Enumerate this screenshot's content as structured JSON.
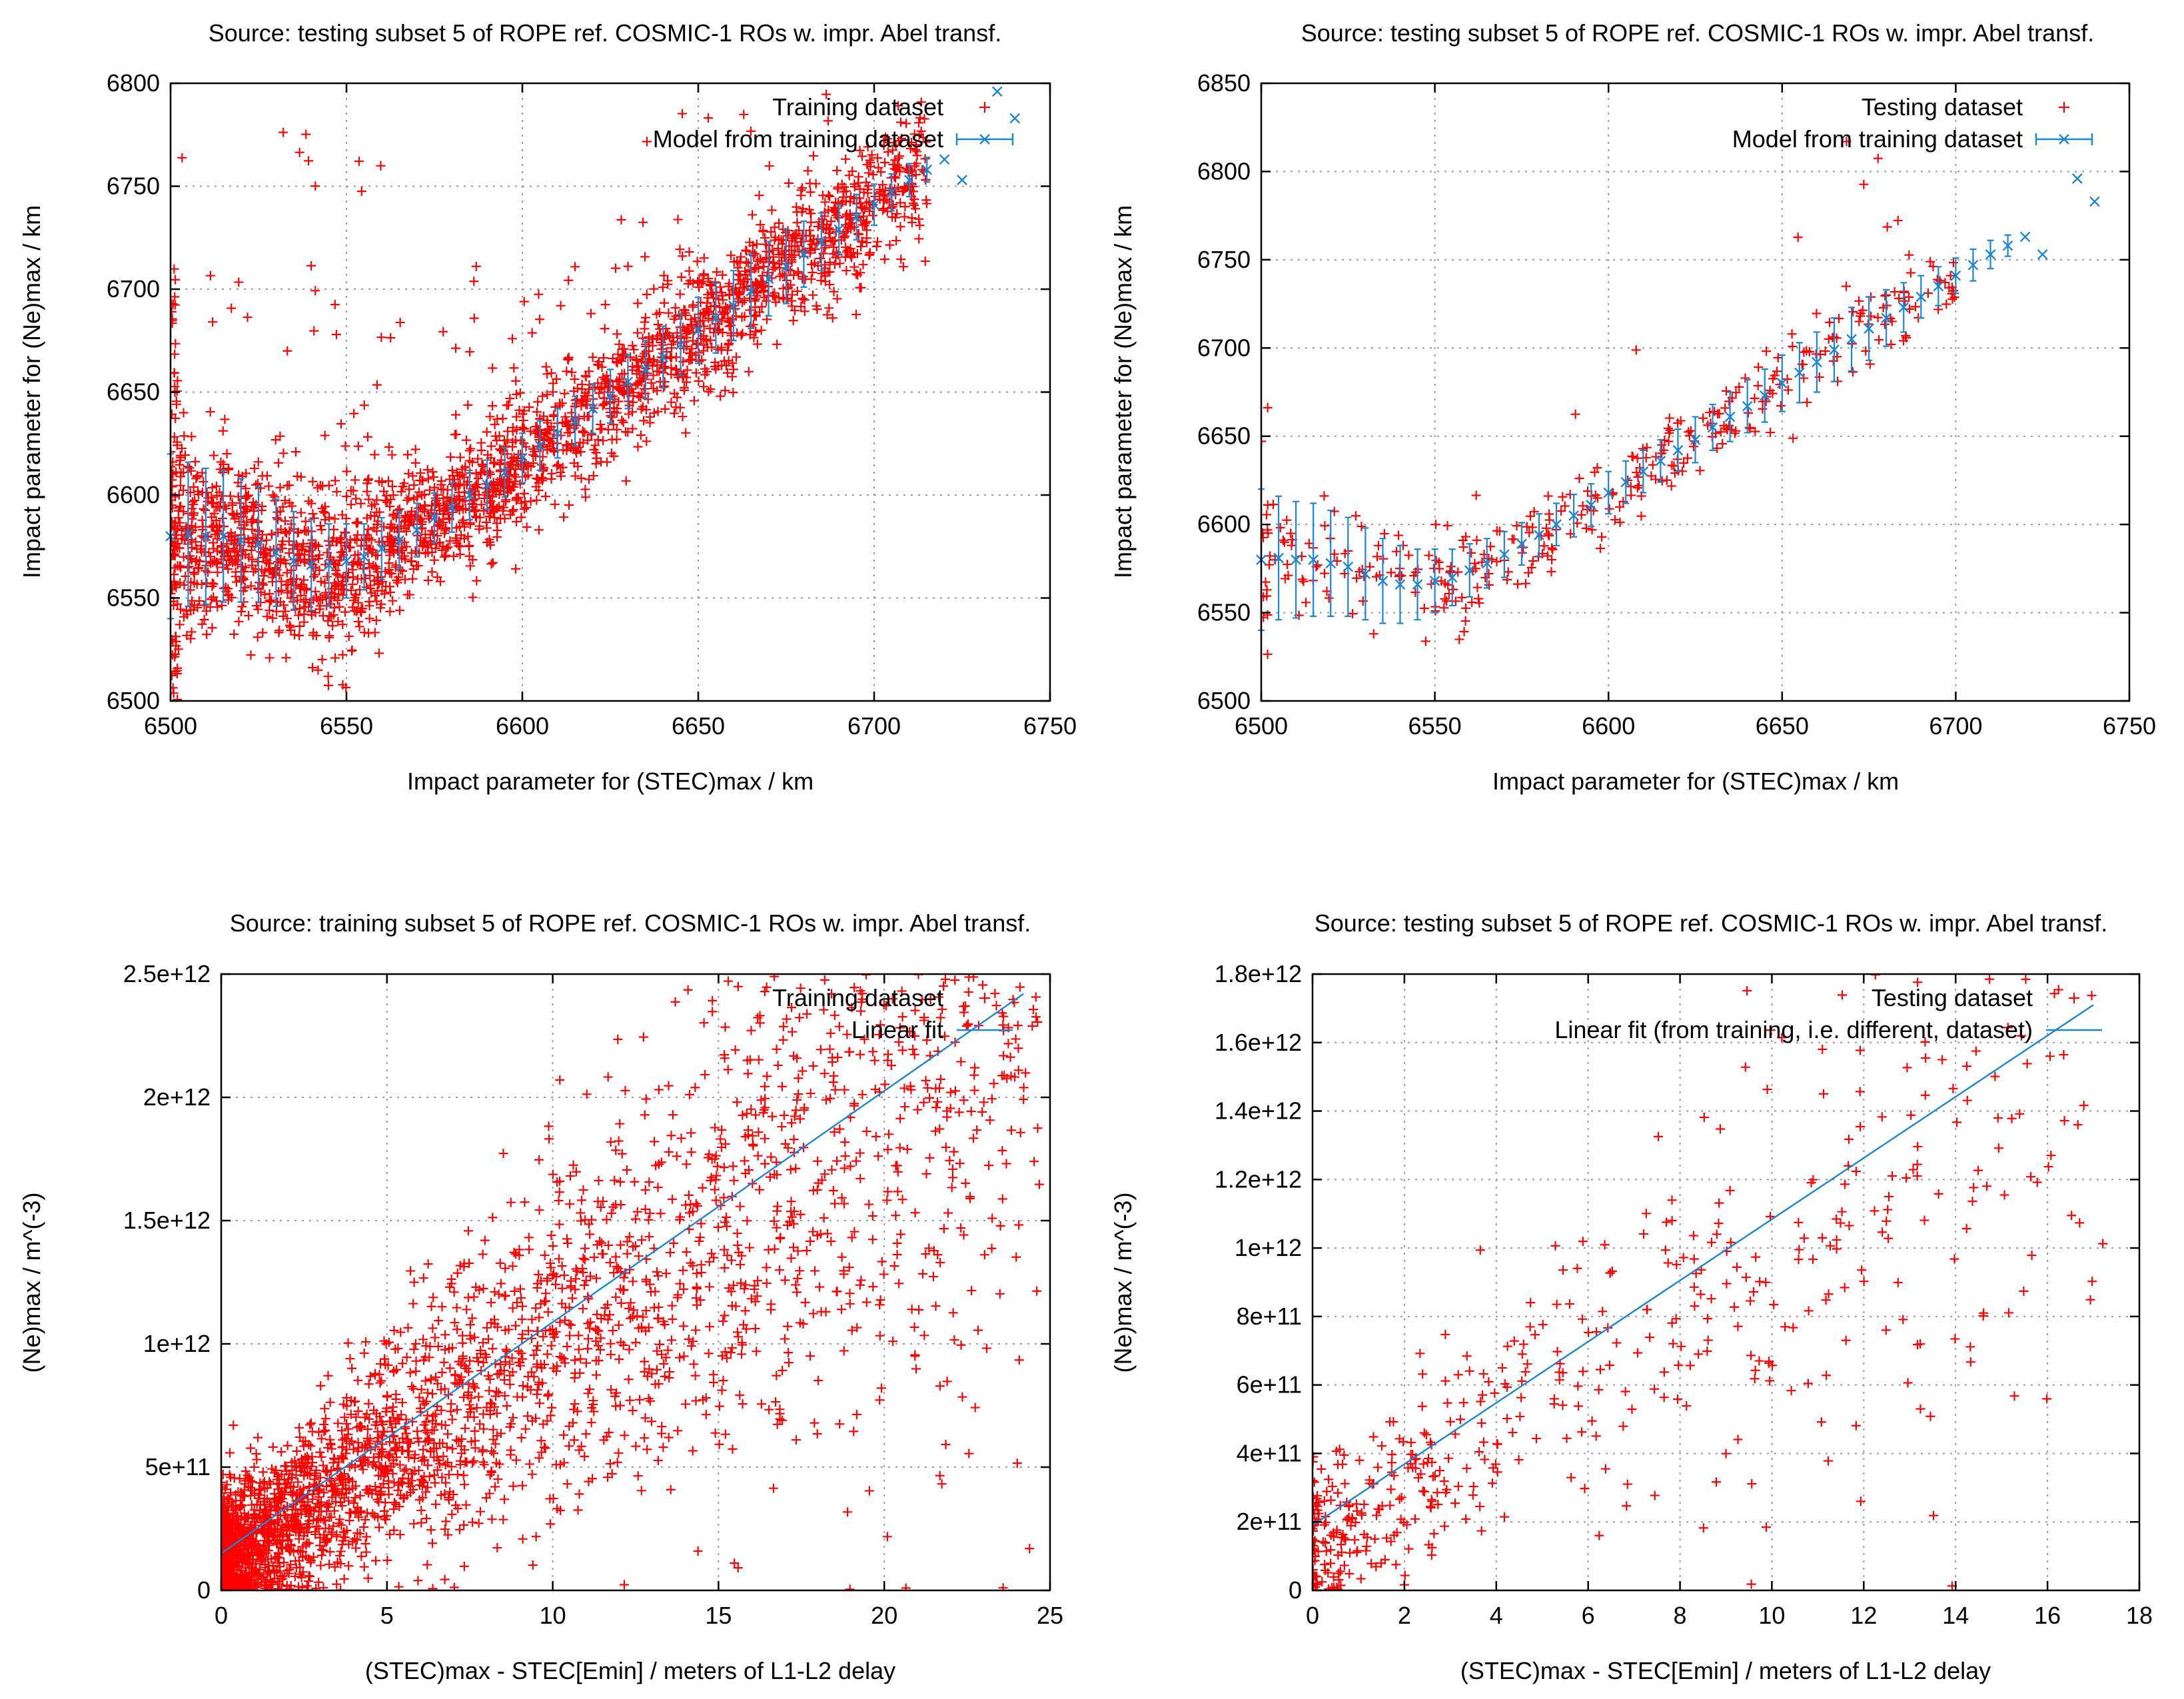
{
  "colors": {
    "points": "#ff0000",
    "model": "#1a85d4",
    "frame": "#000000",
    "grid": "#9a9a9a"
  },
  "chart_data": [
    {
      "type": "scatter",
      "title": "Source: testing subset 5 of ROPE ref. COSMIC-1 ROs w. impr. Abel transf.",
      "xlabel": "Impact parameter for (STEC)max / km",
      "ylabel": "Impact parameter for (Ne)max / km",
      "xlim": [
        6500,
        6750
      ],
      "ylim": [
        6500,
        6800
      ],
      "xticks": [
        6500,
        6550,
        6600,
        6650,
        6700,
        6750
      ],
      "xtick_labels": [
        "6500",
        "6550",
        "6600",
        "6650",
        "6700",
        "6750"
      ],
      "yticks": [
        6500,
        6550,
        6600,
        6650,
        6700,
        6750,
        6800
      ],
      "ytick_labels": [
        "6500",
        "6550",
        "6600",
        "6650",
        "6700",
        "6750",
        "6800"
      ],
      "legend_position": "top-right",
      "series": [
        {
          "name": "Training dataset",
          "kind": "points",
          "count": 2600,
          "trend": "model",
          "spread": 16,
          "noise_mode": "crowd"
        },
        {
          "name": "Model from training dataset",
          "kind": "errorbars",
          "x": [
            6500,
            6505,
            6510,
            6515,
            6520,
            6525,
            6530,
            6535,
            6540,
            6545,
            6550,
            6555,
            6560,
            6565,
            6570,
            6575,
            6580,
            6585,
            6590,
            6595,
            6600,
            6605,
            6610,
            6615,
            6620,
            6625,
            6630,
            6635,
            6640,
            6645,
            6650,
            6655,
            6660,
            6665,
            6670,
            6675,
            6680,
            6685,
            6690,
            6695,
            6700,
            6705,
            6710,
            6715,
            6720,
            6725,
            6735,
            6740
          ],
          "y": [
            6580,
            6581,
            6580,
            6580,
            6578,
            6576,
            6572,
            6568,
            6566,
            6566,
            6568,
            6570,
            6574,
            6578,
            6583,
            6589,
            6594,
            6600,
            6605,
            6611,
            6618,
            6624,
            6630,
            6636,
            6642,
            6648,
            6655,
            6661,
            6667,
            6673,
            6680,
            6686,
            6692,
            6699,
            6705,
            6711,
            6717,
            6723,
            6729,
            6735,
            6741,
            6747,
            6753,
            6758,
            6763,
            6753,
            6796,
            6783
          ],
          "err": [
            40,
            35,
            33,
            32,
            30,
            28,
            26,
            24,
            22,
            20,
            18,
            16,
            15,
            14,
            13,
            12,
            12,
            12,
            12,
            12,
            12,
            12,
            12,
            12,
            12,
            13,
            13,
            14,
            15,
            15,
            16,
            17,
            17,
            18,
            18,
            18,
            16,
            14,
            12,
            11,
            10,
            9,
            8,
            6,
            0,
            0,
            0,
            0
          ]
        }
      ]
    },
    {
      "type": "scatter",
      "title": "Source: testing subset 5 of ROPE ref. COSMIC-1 ROs w. impr. Abel transf.",
      "xlabel": "Impact parameter for (STEC)max / km",
      "ylabel": "Impact parameter for (Ne)max / km",
      "xlim": [
        6500,
        6750
      ],
      "ylim": [
        6500,
        6850
      ],
      "xticks": [
        6500,
        6550,
        6600,
        6650,
        6700,
        6750
      ],
      "xtick_labels": [
        "6500",
        "6550",
        "6600",
        "6650",
        "6700",
        "6750"
      ],
      "yticks": [
        6500,
        6550,
        6600,
        6650,
        6700,
        6750,
        6800,
        6850
      ],
      "ytick_labels": [
        "6500",
        "6550",
        "6600",
        "6650",
        "6700",
        "6750",
        "6800",
        "6850"
      ],
      "legend_position": "top-right",
      "series": [
        {
          "name": "Testing dataset",
          "kind": "points",
          "count": 380,
          "trend": "model",
          "spread": 12,
          "noise_mode": "sparse"
        },
        {
          "name": "Model from training dataset",
          "kind": "errorbars",
          "x": [
            6500,
            6505,
            6510,
            6515,
            6520,
            6525,
            6530,
            6535,
            6540,
            6545,
            6550,
            6555,
            6560,
            6565,
            6570,
            6575,
            6580,
            6585,
            6590,
            6595,
            6600,
            6605,
            6610,
            6615,
            6620,
            6625,
            6630,
            6635,
            6640,
            6645,
            6650,
            6655,
            6660,
            6665,
            6670,
            6675,
            6680,
            6685,
            6690,
            6695,
            6700,
            6705,
            6710,
            6715,
            6720,
            6725,
            6735,
            6740
          ],
          "y": [
            6580,
            6581,
            6580,
            6580,
            6578,
            6576,
            6572,
            6568,
            6566,
            6566,
            6568,
            6570,
            6574,
            6578,
            6583,
            6589,
            6594,
            6600,
            6605,
            6611,
            6618,
            6624,
            6630,
            6636,
            6642,
            6648,
            6655,
            6661,
            6667,
            6673,
            6680,
            6686,
            6692,
            6699,
            6705,
            6711,
            6717,
            6723,
            6729,
            6735,
            6741,
            6747,
            6753,
            6758,
            6763,
            6753,
            6796,
            6783
          ],
          "err": [
            40,
            35,
            33,
            32,
            30,
            28,
            26,
            24,
            22,
            20,
            18,
            16,
            15,
            14,
            13,
            12,
            12,
            12,
            12,
            12,
            12,
            12,
            12,
            12,
            12,
            13,
            13,
            14,
            15,
            15,
            16,
            17,
            17,
            18,
            18,
            18,
            16,
            14,
            12,
            11,
            10,
            9,
            8,
            6,
            0,
            0,
            0,
            0
          ]
        }
      ]
    },
    {
      "type": "scatter",
      "title": "Source: training subset 5 of ROPE ref. COSMIC-1 ROs w. impr. Abel transf.",
      "xlabel": "(STEC)max - STEC[Emin] / meters of L1-L2 delay",
      "ylabel": "(Ne)max / m^(-3)",
      "xlim": [
        0,
        25
      ],
      "ylim": [
        0,
        2500000000000.0
      ],
      "xticks": [
        0,
        5,
        10,
        15,
        20,
        25
      ],
      "xtick_labels": [
        "0",
        "5",
        "10",
        "15",
        "20",
        "25"
      ],
      "yticks": [
        0,
        500000000000.0,
        1000000000000.0,
        1500000000000.0,
        2000000000000.0,
        2500000000000.0
      ],
      "ytick_labels": [
        "0",
        "5e+11",
        "1e+12",
        "1.5e+12",
        "2e+12",
        "2.5e+12"
      ],
      "legend_position": "top-right",
      "series": [
        {
          "name": "Training dataset",
          "kind": "points",
          "count": 3000,
          "trend": "linear",
          "skew": 2.2,
          "rel_spread": 0.35,
          "noise_mode": "dense-low"
        },
        {
          "name": "Linear fit",
          "kind": "line",
          "x": [
            0,
            24.2
          ],
          "y": [
            150000000000.0,
            2420000000000.0
          ]
        }
      ]
    },
    {
      "type": "scatter",
      "title": "Source: testing subset 5 of ROPE ref. COSMIC-1 ROs w. impr. Abel transf.",
      "xlabel": "(STEC)max - STEC[Emin] / meters of L1-L2 delay",
      "ylabel": "(Ne)max / m^(-3)",
      "xlim": [
        0,
        18
      ],
      "ylim": [
        0,
        1800000000000.0
      ],
      "xticks": [
        0,
        2,
        4,
        6,
        8,
        10,
        12,
        14,
        16,
        18
      ],
      "xtick_labels": [
        "0",
        "2",
        "4",
        "6",
        "8",
        "10",
        "12",
        "14",
        "16",
        "18"
      ],
      "yticks": [
        0,
        200000000000.0,
        400000000000.0,
        600000000000.0,
        800000000000.0,
        1000000000000.0,
        1200000000000.0,
        1400000000000.0,
        1600000000000.0,
        1800000000000.0
      ],
      "ytick_labels": [
        "0",
        "2e+11",
        "4e+11",
        "6e+11",
        "8e+11",
        "1e+12",
        "1.2e+12",
        "1.4e+12",
        "1.6e+12",
        "1.8e+12"
      ],
      "legend_position": "top-right",
      "series": [
        {
          "name": "Testing dataset",
          "kind": "points",
          "count": 520,
          "trend": "linear",
          "skew": 1.8,
          "rel_spread": 0.35,
          "noise_mode": "dense-low"
        },
        {
          "name": "Linear fit (from training, i.e. different, dataset)",
          "kind": "line",
          "x": [
            0,
            17.0
          ],
          "y": [
            190000000000.0,
            1710000000000.0
          ]
        }
      ]
    }
  ]
}
